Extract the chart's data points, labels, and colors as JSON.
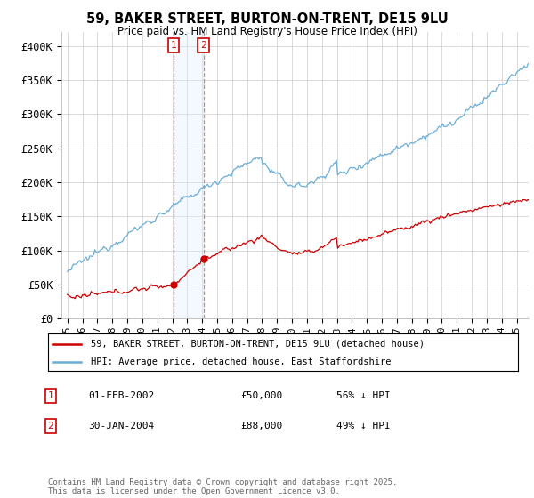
{
  "title": "59, BAKER STREET, BURTON-ON-TRENT, DE15 9LU",
  "subtitle": "Price paid vs. HM Land Registry's House Price Index (HPI)",
  "ylabel_ticks": [
    "£0",
    "£50K",
    "£100K",
    "£150K",
    "£200K",
    "£250K",
    "£300K",
    "£350K",
    "£400K"
  ],
  "ytick_vals": [
    0,
    50000,
    100000,
    150000,
    200000,
    250000,
    300000,
    350000,
    400000
  ],
  "ylim": [
    0,
    420000
  ],
  "hpi_color": "#6aaed6",
  "price_color": "#cc0000",
  "sale1_date_label": "01-FEB-2002",
  "sale1_price": "£50,000",
  "sale1_hpi_pct": "56% ↓ HPI",
  "sale2_date_label": "30-JAN-2004",
  "sale2_price": "£88,000",
  "sale2_hpi_pct": "49% ↓ HPI",
  "sale1_x": 2002.08,
  "sale2_x": 2004.08,
  "legend_line1": "59, BAKER STREET, BURTON-ON-TRENT, DE15 9LU (detached house)",
  "legend_line2": "HPI: Average price, detached house, East Staffordshire",
  "footnote": "Contains HM Land Registry data © Crown copyright and database right 2025.\nThis data is licensed under the Open Government Licence v3.0.",
  "background_color": "#ffffff",
  "grid_color": "#cccccc",
  "vline_color": "#e08080",
  "vshade_color": "#ddeeff"
}
